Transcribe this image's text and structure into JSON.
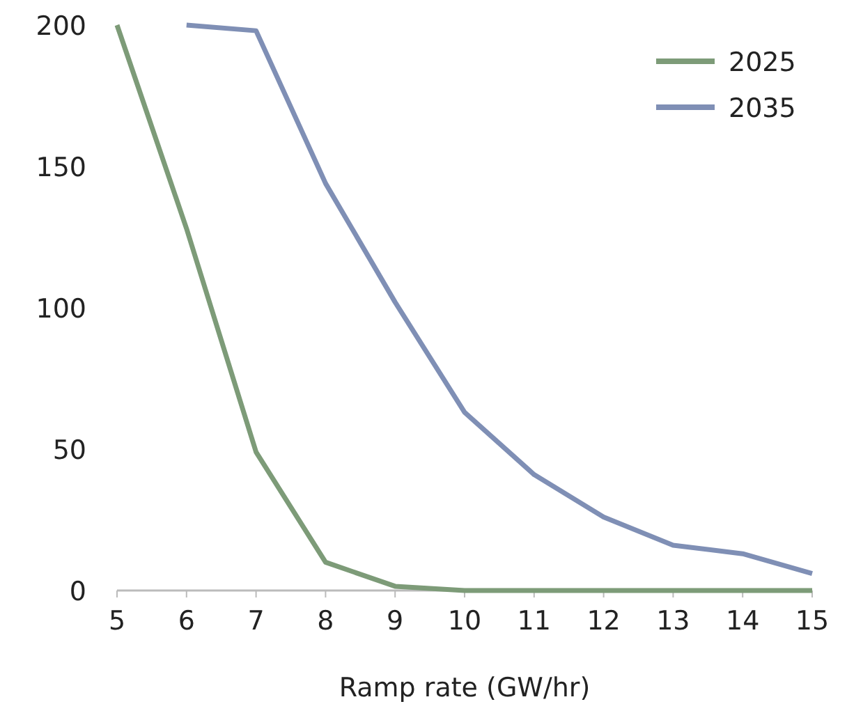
{
  "chart_data": {
    "type": "line",
    "xlabel": "Ramp rate (GW/hr)",
    "x": [
      5,
      6,
      7,
      8,
      9,
      10,
      11,
      12,
      13,
      14,
      15
    ],
    "series": [
      {
        "name": "2025",
        "color": "#7d9b78",
        "values": [
          200,
          128,
          49,
          10,
          1.5,
          0,
          0,
          0,
          0,
          0,
          0
        ]
      },
      {
        "name": "2035",
        "color": "#7f8fb5",
        "values": [
          null,
          200,
          198,
          144,
          102,
          63,
          41,
          26,
          16,
          13,
          6
        ]
      }
    ],
    "xlim": [
      5,
      15
    ],
    "xticks": [
      5,
      6,
      7,
      8,
      9,
      10,
      11,
      12,
      13,
      14,
      15
    ],
    "ylim": [
      0,
      200
    ],
    "yticks": [
      0,
      50,
      100,
      150,
      200
    ],
    "grid": false,
    "legend": "top right",
    "marker": "none",
    "line_style": "solid"
  }
}
